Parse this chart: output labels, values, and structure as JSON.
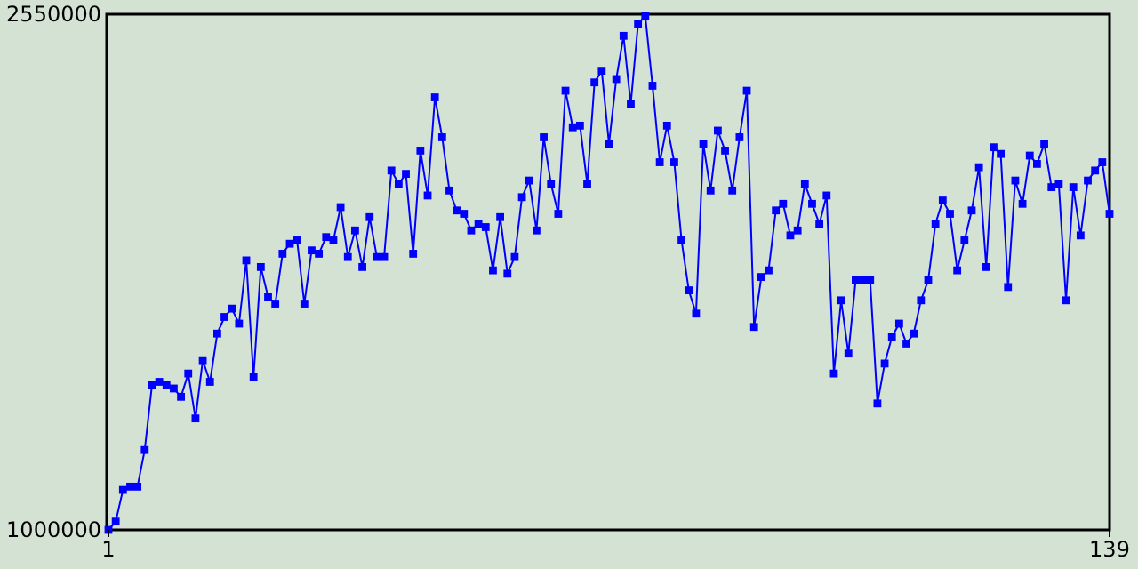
{
  "chart_data": {
    "type": "line",
    "marker": "square",
    "grid": false,
    "x": [
      1,
      2,
      3,
      4,
      5,
      6,
      7,
      8,
      9,
      10,
      11,
      12,
      13,
      14,
      15,
      16,
      17,
      18,
      19,
      20,
      21,
      22,
      23,
      24,
      25,
      26,
      27,
      28,
      29,
      30,
      31,
      32,
      33,
      34,
      35,
      36,
      37,
      38,
      39,
      40,
      41,
      42,
      43,
      44,
      45,
      46,
      47,
      48,
      49,
      50,
      51,
      52,
      53,
      54,
      55,
      56,
      57,
      58,
      59,
      60,
      61,
      62,
      63,
      64,
      65,
      66,
      67,
      68,
      69,
      70,
      71,
      72,
      73,
      74,
      75,
      76,
      77,
      78,
      79,
      80,
      81,
      82,
      83,
      84,
      85,
      86,
      87,
      88,
      89,
      90,
      91,
      92,
      93,
      94,
      95,
      96,
      97,
      98,
      99,
      100,
      101,
      102,
      103,
      104,
      105,
      106,
      107,
      108,
      109,
      110,
      111,
      112,
      113,
      114,
      115,
      116,
      117,
      118,
      119,
      120,
      121,
      122,
      123,
      124,
      125,
      126,
      127,
      128,
      129,
      130,
      131,
      132,
      133,
      134,
      135,
      136,
      137,
      138,
      139
    ],
    "series": [
      {
        "color": "#0000ff",
        "values": [
          1000000,
          1025000,
          1120000,
          1130000,
          1130000,
          1240000,
          1435000,
          1445000,
          1435000,
          1425000,
          1400000,
          1470000,
          1335000,
          1510000,
          1445000,
          1590000,
          1640000,
          1665000,
          1620000,
          1810000,
          1460000,
          1790000,
          1700000,
          1680000,
          1830000,
          1860000,
          1870000,
          1680000,
          1840000,
          1830000,
          1880000,
          1870000,
          1970000,
          1820000,
          1900000,
          1790000,
          1940000,
          1820000,
          1820000,
          2080000,
          2040000,
          2070000,
          1830000,
          2140000,
          2005000,
          2300000,
          2180000,
          2020000,
          1960000,
          1950000,
          1900000,
          1920000,
          1910000,
          1780000,
          1940000,
          1770000,
          1820000,
          2000000,
          2050000,
          1900000,
          2180000,
          2040000,
          1950000,
          2320000,
          2210000,
          2215000,
          2040000,
          2345000,
          2380000,
          2160000,
          2355000,
          2485000,
          2280000,
          2520000,
          2545000,
          2335000,
          2105000,
          2215000,
          2105000,
          1870000,
          1720000,
          1650000,
          2160000,
          2020000,
          2200000,
          2140000,
          2020000,
          2180000,
          2320000,
          1610000,
          1760000,
          1780000,
          1960000,
          1980000,
          1885000,
          1900000,
          2040000,
          1980000,
          1920000,
          2005000,
          1470000,
          1690000,
          1530000,
          1750000,
          1750000,
          1750000,
          1380000,
          1500000,
          1580000,
          1620000,
          1560000,
          1590000,
          1690000,
          1750000,
          1920000,
          1990000,
          1950000,
          1780000,
          1870000,
          1960000,
          2090000,
          1790000,
          2150000,
          2130000,
          1730000,
          2050000,
          1980000,
          2125000,
          2100000,
          2160000,
          2030000,
          2040000,
          1690000,
          2030000,
          1885000,
          2050000,
          2080000,
          2105000,
          1950000
        ]
      }
    ],
    "xlim": [
      1,
      139
    ],
    "xticks": [
      1,
      139
    ],
    "ylim": [
      1000000,
      2550000
    ],
    "yticks": [
      1000000,
      2550000
    ]
  }
}
